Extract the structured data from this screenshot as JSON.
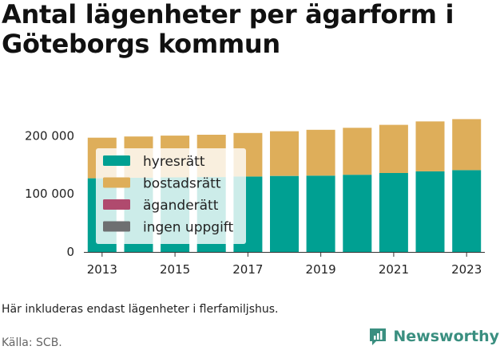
{
  "title_lines": [
    "Antal lägenheter per ägarform i",
    "Göteborgs kommun"
  ],
  "note": "Här inkluderas endast lägenheter i flerfamiljshus.",
  "source": "Källa: SCB.",
  "brand": "Newsworthy",
  "colors": {
    "hyresratt": "#00a092",
    "bostadsratt": "#deae5a",
    "aganderatt": "#b04a6e",
    "ingen_uppgift": "#6e6f71"
  },
  "chart_data": {
    "type": "bar",
    "stacked": true,
    "categories": [
      "2013",
      "2014",
      "2015",
      "2016",
      "2017",
      "2018",
      "2019",
      "2020",
      "2021",
      "2022",
      "2023"
    ],
    "x_tick_labels": [
      "2013",
      "2015",
      "2017",
      "2019",
      "2021",
      "2023"
    ],
    "y_tick_labels": [
      "0",
      "100 000",
      "200 000"
    ],
    "ylim": [
      0,
      235000
    ],
    "grid": false,
    "legend_position": "top-left",
    "series": [
      {
        "name": "hyresrätt",
        "color_key": "hyresratt",
        "values": [
          127000,
          128000,
          128500,
          129000,
          130000,
          131000,
          131500,
          133000,
          136000,
          139000,
          141000
        ]
      },
      {
        "name": "bostadsrätt",
        "color_key": "bostadsratt",
        "values": [
          70000,
          71000,
          72000,
          73000,
          75000,
          77000,
          79000,
          81000,
          83000,
          86000,
          88000
        ]
      },
      {
        "name": "äganderätt",
        "color_key": "aganderatt",
        "values": [
          0,
          0,
          0,
          0,
          0,
          0,
          0,
          0,
          0,
          0,
          0
        ]
      },
      {
        "name": "ingen uppgift",
        "color_key": "ingen_uppgift",
        "values": [
          0,
          0,
          0,
          0,
          0,
          0,
          0,
          0,
          0,
          0,
          0
        ]
      }
    ]
  }
}
